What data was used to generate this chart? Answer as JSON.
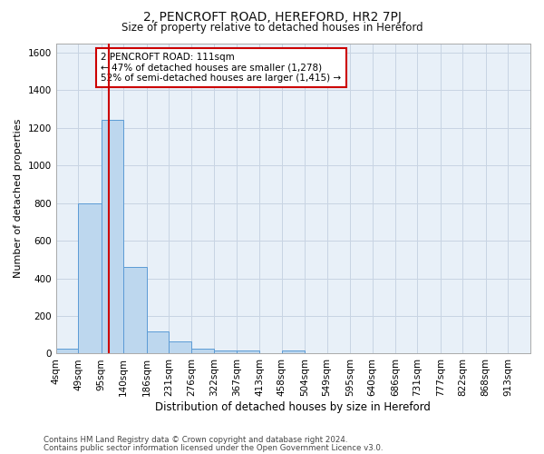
{
  "title": "2, PENCROFT ROAD, HEREFORD, HR2 7PJ",
  "subtitle": "Size of property relative to detached houses in Hereford",
  "xlabel": "Distribution of detached houses by size in Hereford",
  "ylabel": "Number of detached properties",
  "bar_values": [
    25,
    800,
    1240,
    460,
    120,
    65,
    25,
    18,
    18,
    0,
    18,
    0,
    0,
    0,
    0,
    0,
    0,
    0,
    0,
    0
  ],
  "bin_labels": [
    "4sqm",
    "49sqm",
    "95sqm",
    "140sqm",
    "186sqm",
    "231sqm",
    "276sqm",
    "322sqm",
    "367sqm",
    "413sqm",
    "458sqm",
    "504sqm",
    "549sqm",
    "595sqm",
    "640sqm",
    "686sqm",
    "731sqm",
    "777sqm",
    "822sqm",
    "868sqm",
    "913sqm"
  ],
  "bin_edges": [
    4,
    49,
    95,
    140,
    186,
    231,
    276,
    322,
    367,
    413,
    458,
    504,
    549,
    595,
    640,
    686,
    731,
    777,
    822,
    868,
    913
  ],
  "bar_color": "#bdd7ee",
  "bar_edge_color": "#5b9bd5",
  "property_line_x": 111,
  "property_line_color": "#cc0000",
  "ylim": [
    0,
    1650
  ],
  "yticks": [
    0,
    200,
    400,
    600,
    800,
    1000,
    1200,
    1400,
    1600
  ],
  "annotation_title": "2 PENCROFT ROAD: 111sqm",
  "annotation_line1": "← 47% of detached houses are smaller (1,278)",
  "annotation_line2": "52% of semi-detached houses are larger (1,415) →",
  "footer_line1": "Contains HM Land Registry data © Crown copyright and database right 2024.",
  "footer_line2": "Contains public sector information licensed under the Open Government Licence v3.0.",
  "background_color": "#ffffff",
  "grid_color": "#c8d4e3",
  "plot_bg_color": "#e8f0f8"
}
